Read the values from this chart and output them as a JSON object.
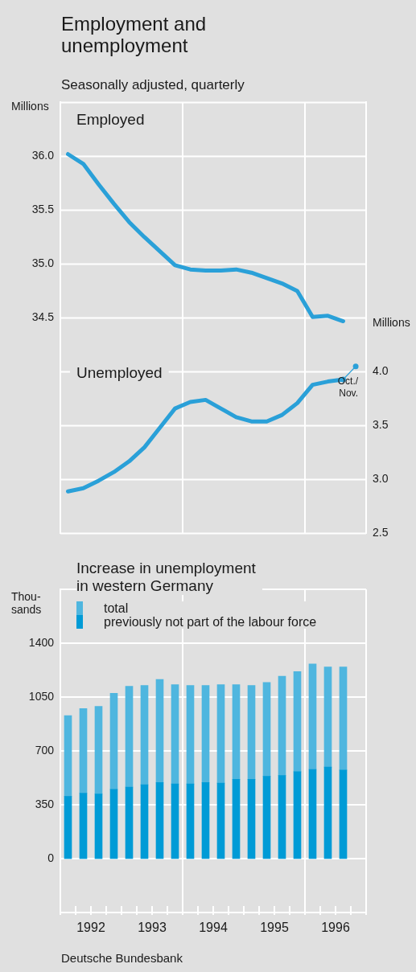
{
  "chart_data": [
    {
      "type": "line",
      "title": "Employment and unemployment",
      "subtitle": "Seasonally adjusted, quarterly",
      "ylabel": "Millions",
      "y2label": "Millions",
      "xlim": [
        1992,
        1997
      ],
      "ylim": [
        32.5,
        36.5
      ],
      "yticks": [
        {
          "value": 32.5,
          "label": null
        },
        {
          "value": 33,
          "label": null
        },
        {
          "value": 33.5,
          "label": null
        },
        {
          "value": 34,
          "label": null
        },
        {
          "value": 34.5,
          "label": "34.5"
        },
        {
          "value": 35,
          "label": "35.0"
        },
        {
          "value": 35.5,
          "label": "35.5"
        },
        {
          "value": 36,
          "label": "36.0"
        },
        {
          "value": 36.5,
          "label": null
        }
      ],
      "y2lim": [
        2.5,
        6.5
      ],
      "y2ticks": [
        {
          "value": 2.5,
          "label": "2.5"
        },
        {
          "value": 3,
          "label": "3.0"
        },
        {
          "value": 3.5,
          "label": "3.5"
        },
        {
          "value": 4,
          "label": "4.0"
        }
      ],
      "series": [
        {
          "name": "Employed",
          "color": "#2aa0d8",
          "x": [
            1992.125,
            1992.375,
            1992.625,
            1992.875,
            1993.125,
            1993.375,
            1993.625,
            1993.875,
            1994.125,
            1994.375,
            1994.625,
            1994.875,
            1995.125,
            1995.375,
            1995.625,
            1995.875,
            1996.125,
            1996.375,
            1996.625
          ],
          "values": [
            36.02,
            35.93,
            35.74,
            35.56,
            35.39,
            35.25,
            35.12,
            34.99,
            34.95,
            34.94,
            34.94,
            34.95,
            34.92,
            34.87,
            34.82,
            34.75,
            34.51,
            34.52,
            34.47
          ]
        },
        {
          "name": "Unemployed",
          "color": "#2aa0d8",
          "axis": "y2",
          "x": [
            1992.125,
            1992.375,
            1992.625,
            1992.875,
            1993.125,
            1993.375,
            1993.625,
            1993.875,
            1994.125,
            1994.375,
            1994.625,
            1994.875,
            1995.125,
            1995.375,
            1995.625,
            1995.875,
            1996.125,
            1996.375,
            1996.625
          ],
          "values": [
            2.89,
            2.92,
            2.99,
            3.07,
            3.17,
            3.3,
            3.48,
            3.66,
            3.72,
            3.74,
            3.66,
            3.58,
            3.54,
            3.54,
            3.6,
            3.71,
            3.88,
            3.91,
            3.93
          ]
        },
        {
          "color": "#2aa0d8",
          "axis": "y2",
          "marker": "circle",
          "x": [
            1996.625,
            1996.83
          ],
          "values": [
            3.93,
            4.05
          ],
          "value_labels": [
            null,
            "Oct./\nNov."
          ]
        }
      ],
      "ref_lines": [
        {
          "axis": "x",
          "value": 1994,
          "color": "#ffffff"
        },
        {
          "axis": "x",
          "value": 1996,
          "color": "#ffffff"
        }
      ],
      "grid": "y",
      "legend": false,
      "marker": "none",
      "line_style": "solid",
      "tick_labels": "y"
    },
    {
      "type": "bar",
      "title": "Increase in unemployment\nin western Germany",
      "ylabel": "Thou-\nsands",
      "stacked": true,
      "x": [
        1992.125,
        1992.375,
        1992.625,
        1992.875,
        1993.125,
        1993.375,
        1993.625,
        1993.875,
        1994.125,
        1994.375,
        1994.625,
        1994.875,
        1995.125,
        1995.375,
        1995.625,
        1995.875,
        1996.125,
        1996.375,
        1996.625
      ],
      "xlim": [
        1992,
        1997
      ],
      "xticks": [
        {
          "value": 1992,
          "label": null
        },
        {
          "value": 1992.25,
          "label": null
        },
        {
          "value": 1992.5,
          "label": "1992"
        },
        {
          "value": 1992.75,
          "label": null
        },
        {
          "value": 1993,
          "label": null
        },
        {
          "value": 1993.25,
          "label": null
        },
        {
          "value": 1993.5,
          "label": "1993"
        },
        {
          "value": 1993.75,
          "label": null
        },
        {
          "value": 1994,
          "label": null
        },
        {
          "value": 1994.25,
          "label": null
        },
        {
          "value": 1994.5,
          "label": "1994"
        },
        {
          "value": 1994.75,
          "label": null
        },
        {
          "value": 1995,
          "label": null
        },
        {
          "value": 1995.25,
          "label": null
        },
        {
          "value": 1995.5,
          "label": "1995"
        },
        {
          "value": 1995.75,
          "label": null
        },
        {
          "value": 1996,
          "label": null
        },
        {
          "value": 1996.25,
          "label": null
        },
        {
          "value": 1996.5,
          "label": "1996"
        },
        {
          "value": 1996.75,
          "label": null
        },
        {
          "value": 1997,
          "label": null
        }
      ],
      "ylim": [
        -350,
        1750
      ],
      "yticks": [
        {
          "value": -350,
          "label": null
        },
        0,
        350,
        700,
        1050,
        1400,
        {
          "value": 1750,
          "label": null
        }
      ],
      "series": [
        {
          "name": "previously not part of the labour force",
          "color": "#009bd6",
          "values": [
            405,
            425,
            420,
            450,
            465,
            480,
            495,
            485,
            485,
            495,
            490,
            515,
            515,
            535,
            540,
            565,
            580,
            595,
            575
          ]
        },
        {
          "name": "total",
          "color": "#4fb6df",
          "values": [
            525,
            550,
            570,
            625,
            655,
            645,
            670,
            645,
            640,
            630,
            640,
            615,
            610,
            610,
            645,
            650,
            685,
            650,
            670
          ]
        }
      ],
      "ref_lines": [
        {
          "axis": "x",
          "value": 1994,
          "color": "#ffffff"
        },
        {
          "axis": "x",
          "value": 1996,
          "color": "#ffffff"
        }
      ],
      "grid": "y",
      "legend": "top left",
      "annotations": [
        "Deutsche Bundesbank"
      ]
    }
  ]
}
